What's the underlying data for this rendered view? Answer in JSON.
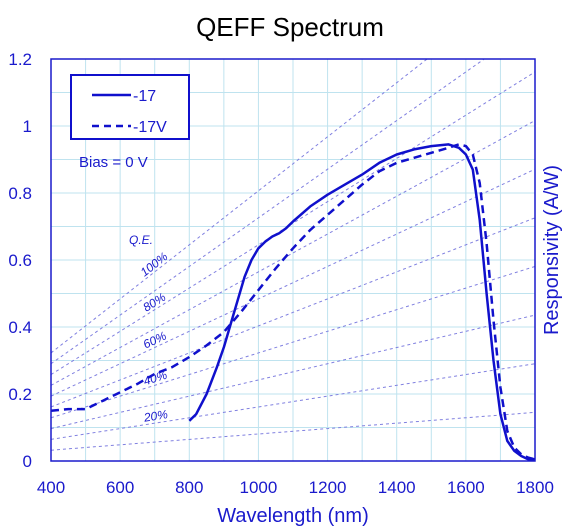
{
  "chart_data": {
    "type": "line",
    "title": "QEFF Spectrum",
    "xlabel": "Wavelength (nm)",
    "ylabel": "Responsivity (A/W)",
    "xlim": [
      400,
      1800
    ],
    "ylim": [
      0,
      1.2
    ],
    "x_ticks": [
      "400",
      "600",
      "800",
      "1000",
      "1200",
      "1400",
      "1600",
      "1800"
    ],
    "y_ticks": [
      "0",
      "0.2",
      "0.4",
      "0.6",
      "0.8",
      "1",
      "1.2"
    ],
    "grid": true,
    "legend_position": "top-left",
    "annotation": "Bias = 0 V",
    "qe_header": "Q.E.",
    "qe_labels": [
      "100%",
      "80%",
      "60%",
      "40%",
      "20%"
    ],
    "qe_values": [
      1.0,
      0.9,
      0.8,
      0.7,
      0.6,
      0.5,
      0.4,
      0.3,
      0.2,
      0.1
    ],
    "colors": {
      "series": "#1010cc",
      "qe_lines": "#8080e0",
      "grid": "#bfe3ef",
      "axis": "#1a1acc"
    },
    "series": [
      {
        "name": "-17",
        "style": "solid",
        "points": [
          [
            800,
            0.12
          ],
          [
            820,
            0.14
          ],
          [
            850,
            0.2
          ],
          [
            880,
            0.28
          ],
          [
            900,
            0.34
          ],
          [
            920,
            0.41
          ],
          [
            940,
            0.48
          ],
          [
            960,
            0.55
          ],
          [
            980,
            0.6
          ],
          [
            1000,
            0.635
          ],
          [
            1020,
            0.655
          ],
          [
            1040,
            0.67
          ],
          [
            1060,
            0.68
          ],
          [
            1080,
            0.695
          ],
          [
            1100,
            0.715
          ],
          [
            1150,
            0.76
          ],
          [
            1200,
            0.795
          ],
          [
            1250,
            0.825
          ],
          [
            1300,
            0.855
          ],
          [
            1350,
            0.89
          ],
          [
            1400,
            0.915
          ],
          [
            1450,
            0.93
          ],
          [
            1500,
            0.94
          ],
          [
            1550,
            0.945
          ],
          [
            1580,
            0.935
          ],
          [
            1600,
            0.915
          ],
          [
            1620,
            0.87
          ],
          [
            1640,
            0.72
          ],
          [
            1660,
            0.5
          ],
          [
            1680,
            0.3
          ],
          [
            1700,
            0.14
          ],
          [
            1720,
            0.06
          ],
          [
            1740,
            0.03
          ],
          [
            1760,
            0.015
          ],
          [
            1780,
            0.005
          ],
          [
            1800,
            0.005
          ]
        ]
      },
      {
        "name": "-17V",
        "style": "dashed",
        "points": [
          [
            400,
            0.15
          ],
          [
            450,
            0.155
          ],
          [
            500,
            0.155
          ],
          [
            550,
            0.18
          ],
          [
            600,
            0.205
          ],
          [
            650,
            0.23
          ],
          [
            700,
            0.26
          ],
          [
            750,
            0.28
          ],
          [
            800,
            0.31
          ],
          [
            850,
            0.345
          ],
          [
            900,
            0.385
          ],
          [
            950,
            0.445
          ],
          [
            1000,
            0.51
          ],
          [
            1050,
            0.575
          ],
          [
            1100,
            0.635
          ],
          [
            1150,
            0.69
          ],
          [
            1200,
            0.735
          ],
          [
            1250,
            0.78
          ],
          [
            1300,
            0.825
          ],
          [
            1350,
            0.865
          ],
          [
            1400,
            0.89
          ],
          [
            1450,
            0.905
          ],
          [
            1500,
            0.92
          ],
          [
            1550,
            0.935
          ],
          [
            1580,
            0.945
          ],
          [
            1600,
            0.94
          ],
          [
            1620,
            0.915
          ],
          [
            1640,
            0.83
          ],
          [
            1660,
            0.65
          ],
          [
            1680,
            0.42
          ],
          [
            1700,
            0.22
          ],
          [
            1720,
            0.09
          ],
          [
            1740,
            0.04
          ],
          [
            1760,
            0.02
          ],
          [
            1780,
            0.01
          ],
          [
            1800,
            0.005
          ]
        ]
      }
    ]
  }
}
